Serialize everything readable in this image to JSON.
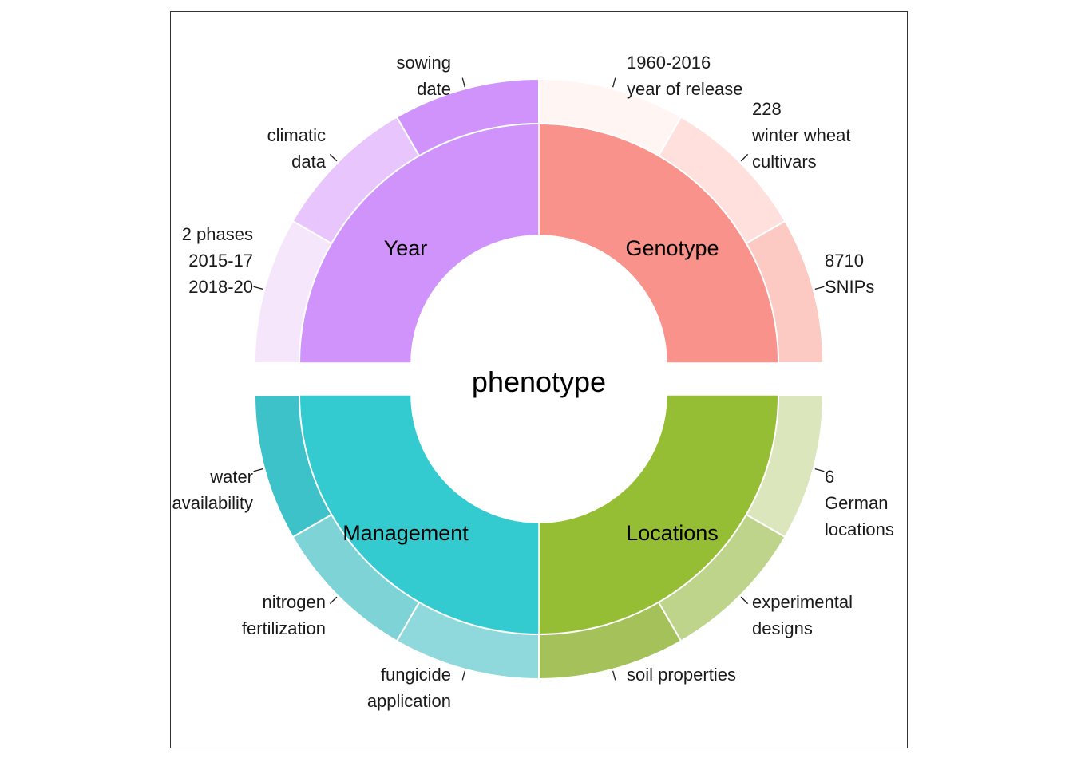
{
  "center_label": "phenotype",
  "quadrants": [
    {
      "key": "genotype",
      "name": "Genotype",
      "color": "#f8928a",
      "items": [
        {
          "lines": [
            "1960-2016",
            "year of release"
          ],
          "color": "#fff5f3"
        },
        {
          "lines": [
            "228",
            "winter wheat",
            "cultivars"
          ],
          "color": "#ffe0dc"
        },
        {
          "lines": [
            "8710",
            "SNIPs"
          ],
          "color": "#fdc9c3"
        }
      ]
    },
    {
      "key": "locations",
      "name": "Locations",
      "color": "#96be34",
      "items": [
        {
          "lines": [
            "6",
            "German",
            "locations"
          ],
          "color": "#dce6bd"
        },
        {
          "lines": [
            "experimental",
            "designs"
          ],
          "color": "#bed48b"
        },
        {
          "lines": [
            "soil properties"
          ],
          "color": "#a4c15a"
        }
      ]
    },
    {
      "key": "management",
      "name": "Management",
      "color": "#33cbd0",
      "items": [
        {
          "lines": [
            "fungicide",
            "application"
          ],
          "color": "#8fd9dc"
        },
        {
          "lines": [
            "nitrogen",
            "fertilization"
          ],
          "color": "#7ed3d6"
        },
        {
          "lines": [
            "water",
            "availability"
          ],
          "color": "#3cc2c8"
        }
      ]
    },
    {
      "key": "year",
      "name": "Year",
      "color": "#d093fb",
      "items": [
        {
          "lines": [
            "2 phases",
            "2015-17",
            "2018-20"
          ],
          "color": "#f6e6fc"
        },
        {
          "lines": [
            "climatic",
            "data"
          ],
          "color": "#e8c5fd"
        },
        {
          "lines": [
            "sowing",
            "date"
          ],
          "color": "#d093fb"
        }
      ]
    }
  ]
}
